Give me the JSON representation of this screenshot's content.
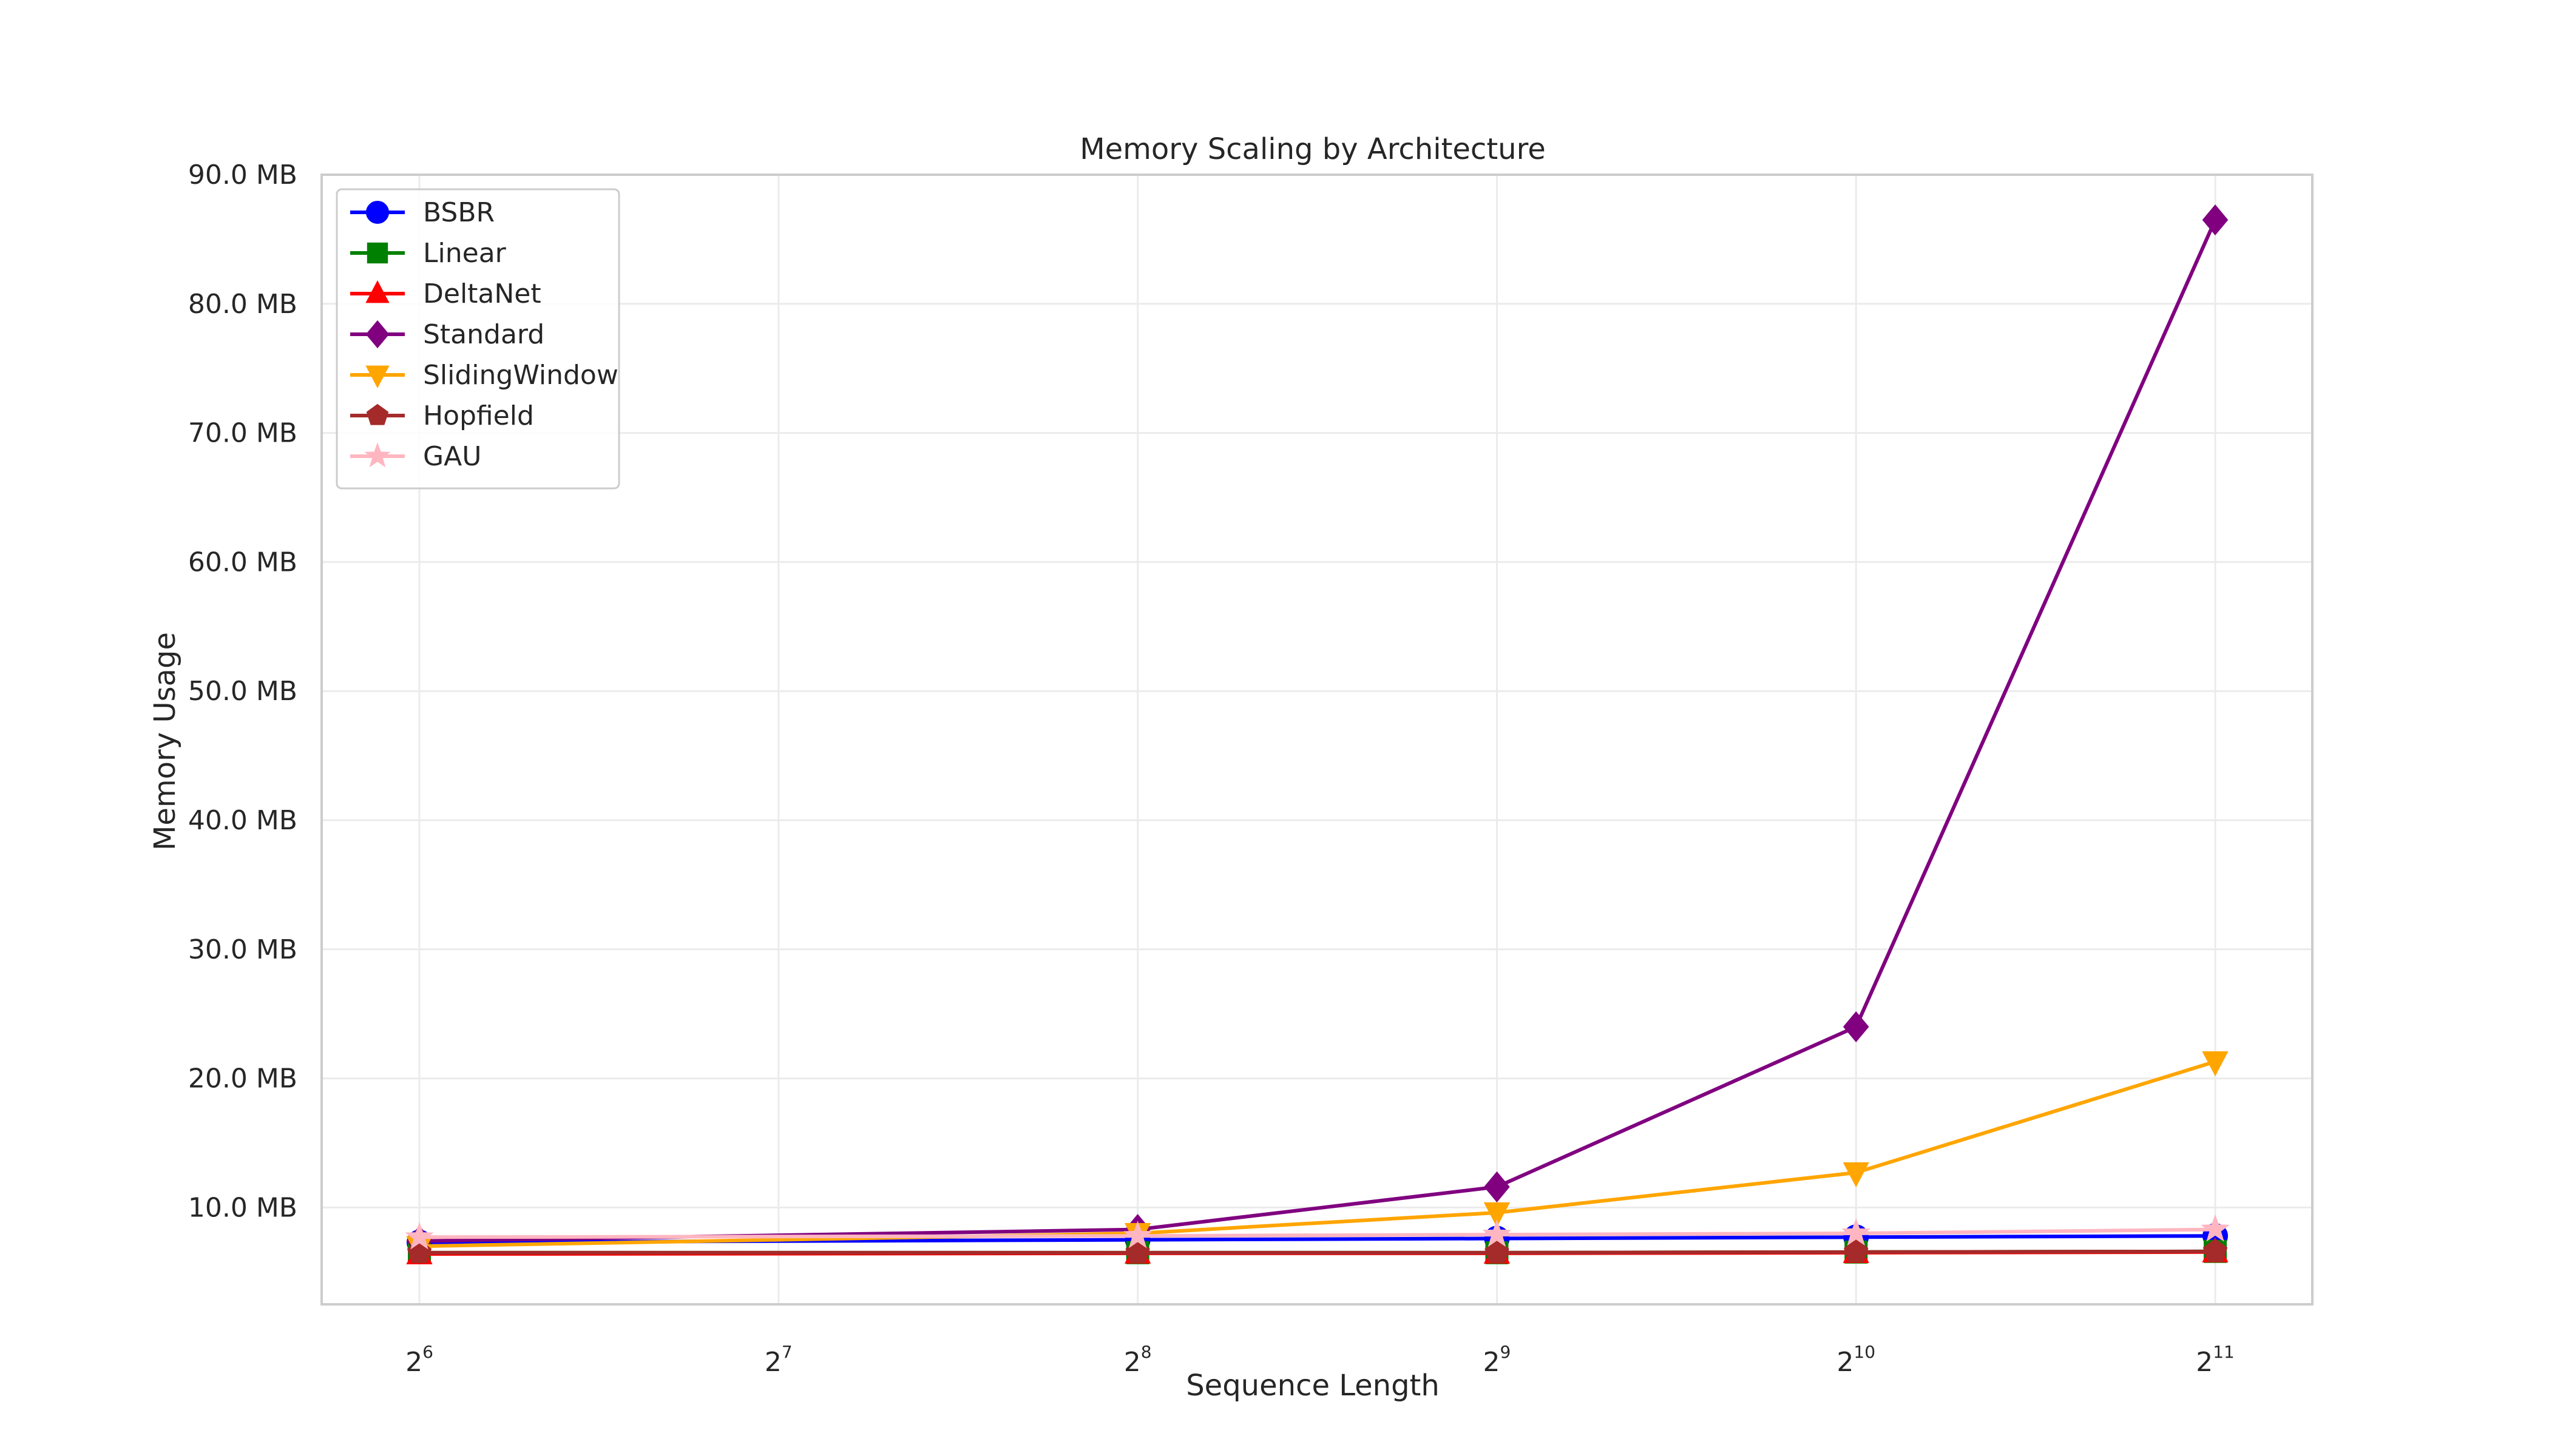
{
  "chart_data": {
    "type": "line",
    "title": "Memory Scaling by Architecture",
    "xlabel": "Sequence Length",
    "ylabel": "Memory Usage",
    "x_scale": "log2",
    "x": [
      64,
      256,
      512,
      1024,
      2048
    ],
    "x_ticks": [
      {
        "base": "2",
        "exp": "6",
        "value": 64
      },
      {
        "base": "2",
        "exp": "7",
        "value": 128
      },
      {
        "base": "2",
        "exp": "8",
        "value": 256
      },
      {
        "base": "2",
        "exp": "9",
        "value": 512
      },
      {
        "base": "2",
        "exp": "10",
        "value": 1024
      },
      {
        "base": "2",
        "exp": "11",
        "value": 2048
      }
    ],
    "xlim": [
      53,
      2470
    ],
    "ylim": [
      2.5,
      90
    ],
    "y_ticks": [
      {
        "value": 10,
        "label": "10.0 MB"
      },
      {
        "value": 20,
        "label": "20.0 MB"
      },
      {
        "value": 30,
        "label": "30.0 MB"
      },
      {
        "value": 40,
        "label": "40.0 MB"
      },
      {
        "value": 50,
        "label": "50.0 MB"
      },
      {
        "value": 60,
        "label": "60.0 MB"
      },
      {
        "value": 70,
        "label": "70.0 MB"
      },
      {
        "value": 80,
        "label": "80.0 MB"
      },
      {
        "value": 90,
        "label": "90.0 MB"
      }
    ],
    "grid": true,
    "legend_position": "top-left",
    "series": [
      {
        "name": "BSBR",
        "color": "#0000ff",
        "marker": "circle",
        "values": [
          7.3,
          7.5,
          7.6,
          7.7,
          7.8
        ]
      },
      {
        "name": "Linear",
        "color": "#008000",
        "marker": "square",
        "values": [
          6.5,
          6.5,
          6.5,
          6.55,
          6.6
        ]
      },
      {
        "name": "DeltaNet",
        "color": "#ff0000",
        "marker": "triangle-up",
        "values": [
          6.4,
          6.45,
          6.45,
          6.5,
          6.55
        ]
      },
      {
        "name": "Standard",
        "color": "#800080",
        "marker": "diamond",
        "values": [
          7.4,
          8.3,
          11.6,
          24.0,
          86.5
        ]
      },
      {
        "name": "SlidingWindow",
        "color": "#ffa500",
        "marker": "triangle-down",
        "values": [
          7.0,
          8.0,
          9.6,
          12.7,
          21.3
        ]
      },
      {
        "name": "Hopfield",
        "color": "#a52a2a",
        "marker": "pentagon",
        "values": [
          6.5,
          6.5,
          6.5,
          6.55,
          6.6
        ]
      },
      {
        "name": "GAU",
        "color": "#ffb6c1",
        "marker": "star",
        "values": [
          7.7,
          7.8,
          7.9,
          8.0,
          8.3
        ]
      }
    ]
  }
}
